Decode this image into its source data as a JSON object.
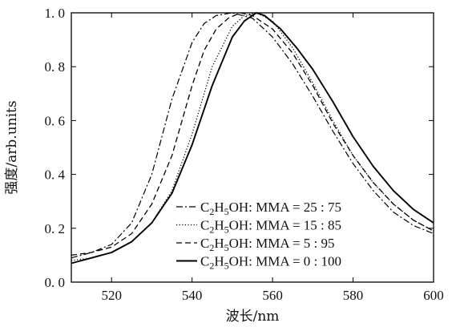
{
  "chart_data": {
    "type": "line",
    "xlabel": "波长/nm",
    "ylabel": "强度/arb.units",
    "xlim": [
      510,
      600
    ],
    "ylim": [
      0,
      1.0
    ],
    "x_ticks": [
      520,
      540,
      560,
      580,
      600
    ],
    "x_tick_labels": [
      "520",
      "540",
      "560",
      "580",
      "600"
    ],
    "y_ticks": [
      0,
      0.2,
      0.4,
      0.6,
      0.8,
      1.0
    ],
    "y_tick_labels": [
      "0. 0",
      "0. 2",
      "0. 4",
      "0. 6",
      "0. 8",
      "1. 0"
    ],
    "legend_position": "lower-left",
    "series": [
      {
        "name": "C2H5OH:MMA=25:75",
        "style": "dashdot",
        "x": [
          510,
          515,
          520,
          525,
          530,
          535,
          540,
          543,
          546,
          550,
          555,
          560,
          565,
          570,
          575,
          580,
          585,
          590,
          595,
          600
        ],
        "y": [
          0.09,
          0.11,
          0.14,
          0.22,
          0.4,
          0.68,
          0.89,
          0.96,
          0.99,
          1.0,
          0.98,
          0.91,
          0.81,
          0.69,
          0.56,
          0.44,
          0.34,
          0.26,
          0.21,
          0.18
        ]
      },
      {
        "name": "C2H5OH:MMA=15:85",
        "style": "dotted",
        "x": [
          510,
          515,
          520,
          525,
          530,
          535,
          540,
          545,
          550,
          553,
          556,
          560,
          565,
          570,
          575,
          580,
          585,
          590,
          595,
          600
        ],
        "y": [
          0.08,
          0.09,
          0.11,
          0.15,
          0.22,
          0.34,
          0.55,
          0.8,
          0.95,
          0.99,
          1.0,
          0.97,
          0.87,
          0.74,
          0.6,
          0.47,
          0.37,
          0.29,
          0.23,
          0.19
        ]
      },
      {
        "name": "C2H5OH:MMA=5:95",
        "style": "dashed",
        "x": [
          510,
          515,
          520,
          525,
          530,
          535,
          540,
          543,
          546,
          549,
          552,
          555,
          560,
          565,
          570,
          575,
          580,
          585,
          590,
          595,
          600
        ],
        "y": [
          0.1,
          0.11,
          0.13,
          0.18,
          0.29,
          0.47,
          0.73,
          0.86,
          0.94,
          0.98,
          1.0,
          0.99,
          0.94,
          0.85,
          0.73,
          0.59,
          0.47,
          0.37,
          0.29,
          0.23,
          0.19
        ]
      },
      {
        "name": "C2H5OH:MMA=0:100",
        "style": "solid",
        "x": [
          510,
          515,
          520,
          525,
          530,
          535,
          540,
          545,
          550,
          553,
          556,
          558,
          562,
          566,
          570,
          575,
          580,
          585,
          590,
          595,
          600
        ],
        "y": [
          0.07,
          0.09,
          0.11,
          0.15,
          0.22,
          0.33,
          0.51,
          0.73,
          0.91,
          0.97,
          1.0,
          0.99,
          0.94,
          0.87,
          0.79,
          0.67,
          0.54,
          0.43,
          0.34,
          0.27,
          0.22
        ]
      }
    ],
    "legend": [
      {
        "base": "C",
        "sub1": "2",
        "mid": "H",
        "sub2": "5",
        "rest": "OH: MMA = 25 : 75",
        "style": "dashdot"
      },
      {
        "base": "C",
        "sub1": "2",
        "mid": "H",
        "sub2": "5",
        "rest": "OH: MMA = 15 : 85",
        "style": "dotted"
      },
      {
        "base": "C",
        "sub1": "2",
        "mid": "H",
        "sub2": "5",
        "rest": "OH: MMA = 5 : 95",
        "style": "dashed"
      },
      {
        "base": "C",
        "sub1": "2",
        "mid": "H",
        "sub2": "5",
        "rest": "OH: MMA = 0 : 100",
        "style": "solid"
      }
    ]
  }
}
